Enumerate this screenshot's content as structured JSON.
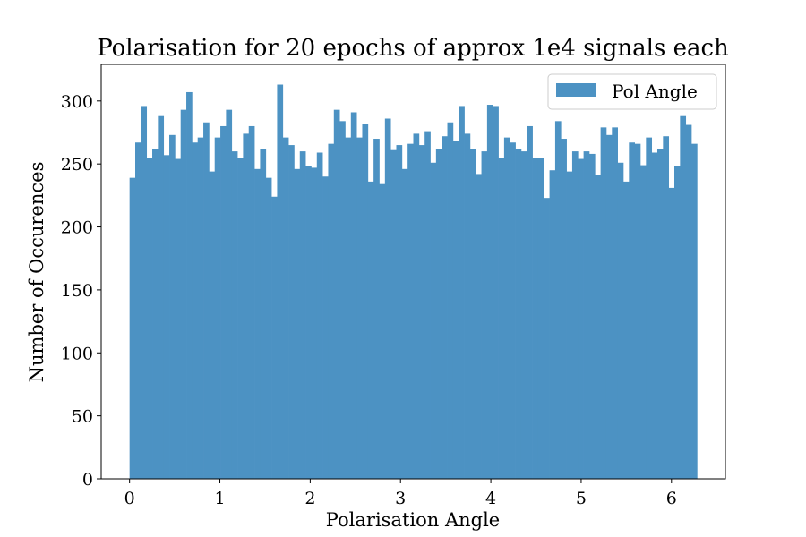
{
  "chart_data": {
    "type": "bar",
    "title": "Polarisation for 20 epochs of approx 1e4 signals each",
    "xlabel": "Polarisation Angle",
    "ylabel": "Number of Occurences",
    "xlim": [
      -0.314,
      6.597
    ],
    "ylim": [
      0,
      329
    ],
    "xticks": [
      0,
      1,
      2,
      3,
      4,
      5,
      6
    ],
    "yticks": [
      0,
      50,
      100,
      150,
      200,
      250,
      300
    ],
    "grid": false,
    "legend_position": "upper-right",
    "bin_start": 0,
    "bin_end": 6.2832,
    "bar_color": "#4c92c3",
    "series": [
      {
        "name": "Pol Angle",
        "values": [
          239,
          267,
          296,
          255,
          262,
          288,
          257,
          273,
          254,
          293,
          307,
          267,
          271,
          283,
          244,
          271,
          280,
          293,
          260,
          255,
          274,
          280,
          246,
          262,
          239,
          224,
          313,
          271,
          265,
          246,
          260,
          248,
          247,
          259,
          240,
          266,
          293,
          284,
          271,
          291,
          271,
          282,
          236,
          270,
          234,
          286,
          261,
          265,
          246,
          266,
          274,
          265,
          276,
          251,
          262,
          272,
          283,
          268,
          296,
          274,
          262,
          242,
          260,
          297,
          296,
          255,
          271,
          267,
          262,
          260,
          280,
          255,
          255,
          223,
          245,
          284,
          270,
          244,
          260,
          254,
          260,
          258,
          241,
          279,
          273,
          279,
          251,
          236,
          267,
          266,
          249,
          271,
          259,
          262,
          272,
          231,
          248,
          288,
          281,
          266
        ]
      }
    ]
  }
}
